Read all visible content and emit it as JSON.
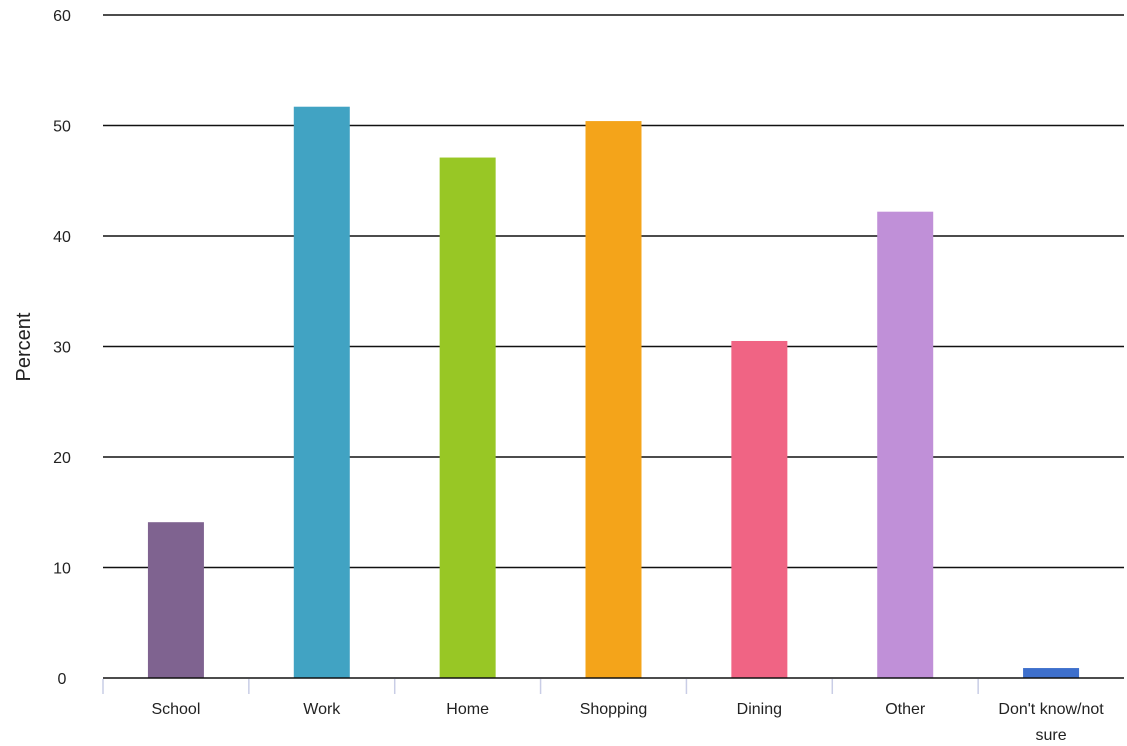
{
  "chart_data": {
    "type": "bar",
    "title": "",
    "xlabel": "",
    "ylabel": "Percent",
    "ylim": [
      0,
      60
    ],
    "yticks": [
      "0",
      "10",
      "20",
      "30",
      "40",
      "50",
      "60"
    ],
    "grid": true,
    "categories": [
      "School",
      "Work",
      "Home",
      "Shopping",
      "Dining",
      "Other",
      "Don't know/not sure"
    ],
    "category_lines": [
      [
        "School"
      ],
      [
        "Work"
      ],
      [
        "Home"
      ],
      [
        "Shopping"
      ],
      [
        "Dining"
      ],
      [
        "Other"
      ],
      [
        "Don't know/not",
        "sure"
      ]
    ],
    "values": [
      14.1,
      51.7,
      47.1,
      50.4,
      30.5,
      42.2,
      0.9
    ],
    "colors": [
      "#7f6390",
      "#41a3c3",
      "#98c725",
      "#f4a41a",
      "#f06484",
      "#c090d8",
      "#3d6fcc"
    ]
  }
}
